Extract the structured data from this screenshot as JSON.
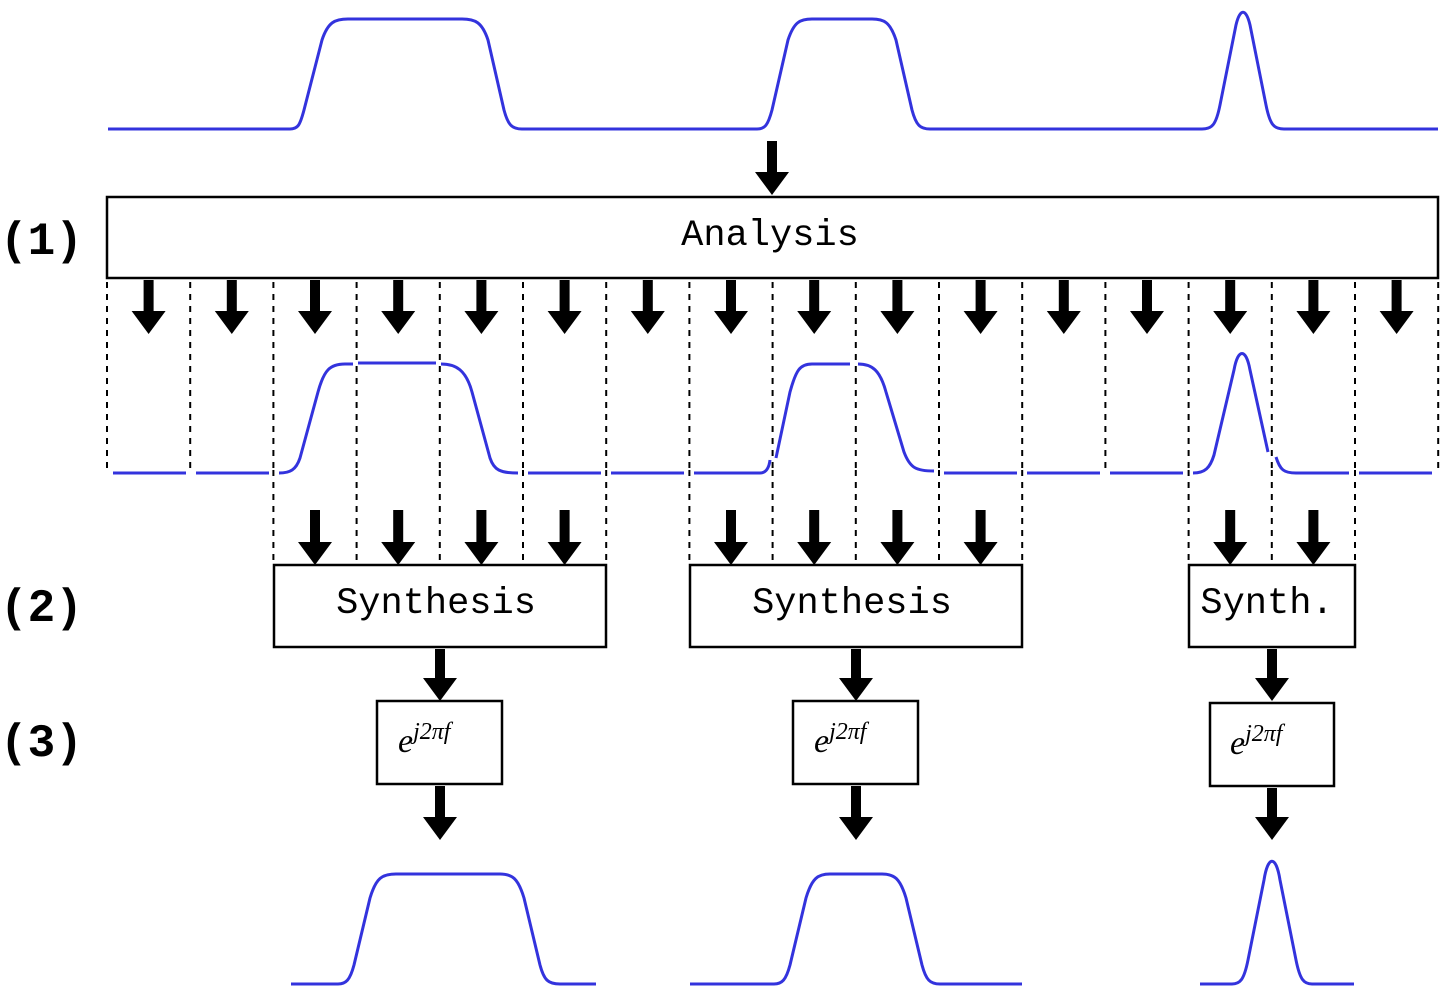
{
  "colors": {
    "signal": "#3333dd",
    "line": "#000000",
    "background": "#ffffff"
  },
  "stages": {
    "s1": "(1)",
    "s2": "(2)",
    "s3": "(3)"
  },
  "analysis": {
    "label": "Analysis"
  },
  "synthesis": {
    "a": "Synthesis",
    "b": "Synthesis",
    "c": "Synth."
  },
  "shift": {
    "base": "e",
    "exponent": "j2πf"
  },
  "subbands": {
    "count": 16
  }
}
